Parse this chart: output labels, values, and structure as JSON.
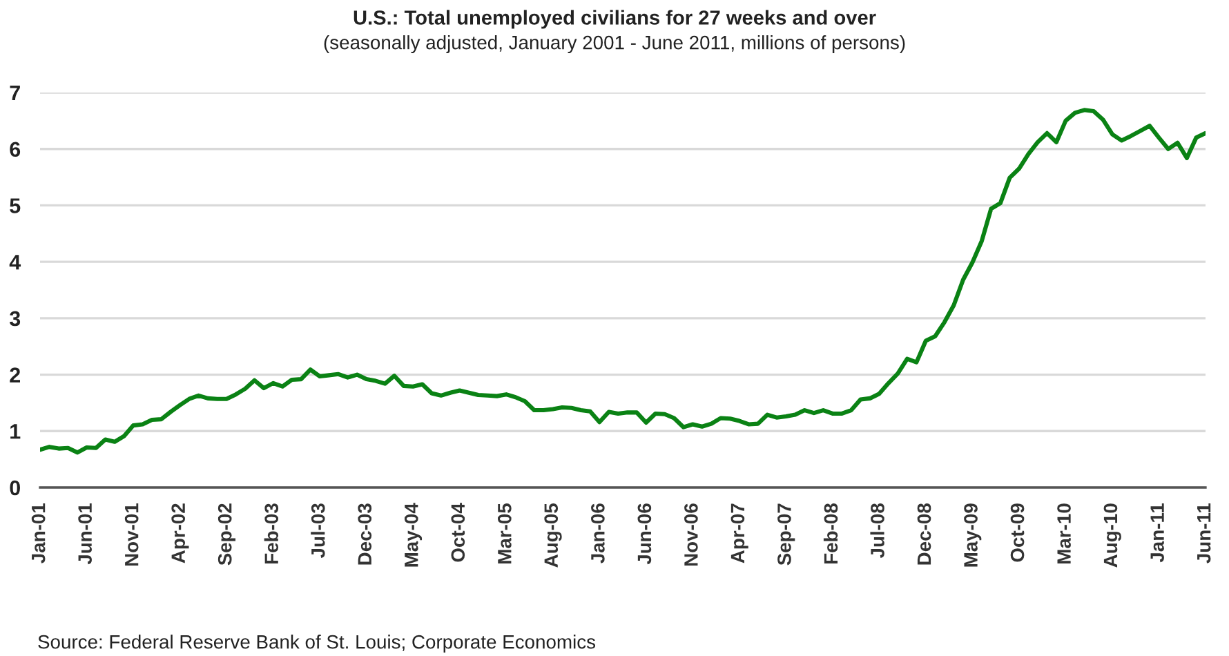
{
  "chart_data": {
    "type": "line",
    "title": "U.S.: Total unemployed civilians for 27 weeks and over",
    "subtitle": "(seasonally adjusted, January 2001 - June 2011, millions of persons)",
    "categories": [
      "Jan-01",
      null,
      null,
      null,
      null,
      "Jun-01",
      null,
      null,
      null,
      null,
      "Nov-01",
      null,
      null,
      null,
      null,
      "Apr-02",
      null,
      null,
      null,
      null,
      "Sep-02",
      null,
      null,
      null,
      null,
      "Feb-03",
      null,
      null,
      null,
      null,
      "Jul-03",
      null,
      null,
      null,
      null,
      "Dec-03",
      null,
      null,
      null,
      null,
      "May-04",
      null,
      null,
      null,
      null,
      "Oct-04",
      null,
      null,
      null,
      null,
      "Mar-05",
      null,
      null,
      null,
      null,
      "Aug-05",
      null,
      null,
      null,
      null,
      "Jan-06",
      null,
      null,
      null,
      null,
      "Jun-06",
      null,
      null,
      null,
      null,
      "Nov-06",
      null,
      null,
      null,
      null,
      "Apr-07",
      null,
      null,
      null,
      null,
      "Sep-07",
      null,
      null,
      null,
      null,
      "Feb-08",
      null,
      null,
      null,
      null,
      "Jul-08",
      null,
      null,
      null,
      null,
      "Dec-08",
      null,
      null,
      null,
      null,
      "May-09",
      null,
      null,
      null,
      null,
      "Oct-09",
      null,
      null,
      null,
      null,
      "Mar-10",
      null,
      null,
      null,
      null,
      "Aug-10",
      null,
      null,
      null,
      null,
      "Jan-11",
      null,
      null,
      null,
      null,
      "Jun-11"
    ],
    "series": [
      {
        "color": "#0a8214",
        "values": [
          0.67,
          0.72,
          0.69,
          0.7,
          0.62,
          0.71,
          0.7,
          0.85,
          0.81,
          0.91,
          1.1,
          1.12,
          1.2,
          1.21,
          1.34,
          1.46,
          1.57,
          1.63,
          1.58,
          1.57,
          1.57,
          1.65,
          1.75,
          1.9,
          1.76,
          1.85,
          1.79,
          1.91,
          1.92,
          2.09,
          1.97,
          1.99,
          2.01,
          1.95,
          2.0,
          1.92,
          1.89,
          1.84,
          1.98,
          1.8,
          1.79,
          1.83,
          1.67,
          1.63,
          1.68,
          1.72,
          1.68,
          1.64,
          1.63,
          1.62,
          1.65,
          1.6,
          1.53,
          1.37,
          1.37,
          1.39,
          1.42,
          1.41,
          1.37,
          1.35,
          1.16,
          1.34,
          1.31,
          1.33,
          1.33,
          1.15,
          1.31,
          1.3,
          1.23,
          1.07,
          1.12,
          1.08,
          1.13,
          1.23,
          1.22,
          1.18,
          1.12,
          1.13,
          1.29,
          1.24,
          1.26,
          1.29,
          1.37,
          1.32,
          1.37,
          1.31,
          1.31,
          1.37,
          1.56,
          1.58,
          1.66,
          1.85,
          2.02,
          2.28,
          2.22,
          2.6,
          2.68,
          2.93,
          3.23,
          3.68,
          3.99,
          4.37,
          4.94,
          5.04,
          5.49,
          5.65,
          5.91,
          6.12,
          6.28,
          6.12,
          6.5,
          6.64,
          6.69,
          6.67,
          6.52,
          6.26,
          6.15,
          6.23,
          6.32,
          6.41,
          6.2,
          6.0,
          6.11,
          5.84,
          6.2,
          6.28
        ]
      }
    ],
    "ylim": [
      0,
      7
    ],
    "yticks": [
      0,
      1,
      2,
      3,
      4,
      5,
      6,
      7
    ],
    "grid": "y",
    "marker": "none",
    "line_style": "solid",
    "annotations": [
      "Source: Federal Reserve Bank of St. Louis; Corporate Economics"
    ]
  }
}
